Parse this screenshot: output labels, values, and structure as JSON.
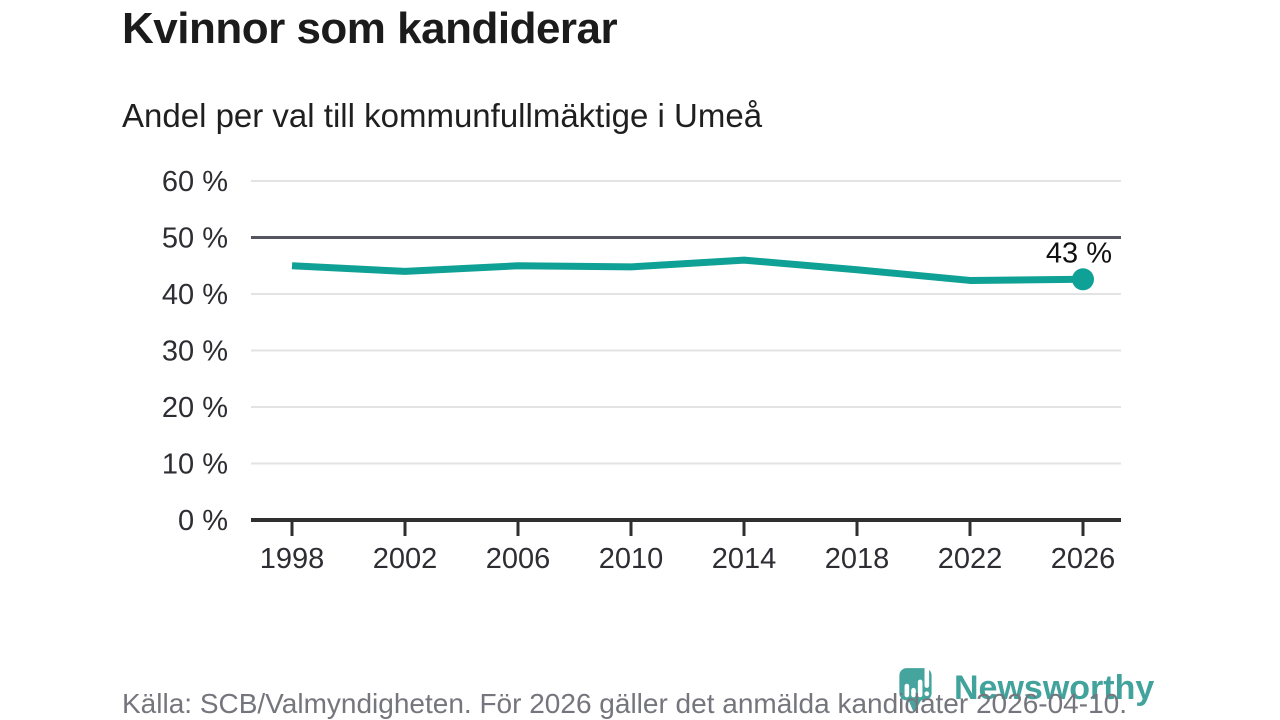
{
  "header": {
    "title": "Kvinnor som kandiderar",
    "subtitle": "Andel per val till kommunfullmäktige i Umeå"
  },
  "chart_data": {
    "type": "line",
    "title": "Kvinnor som kandiderar",
    "subtitle": "Andel per val till kommunfullmäktige i Umeå",
    "x": [
      1998,
      2002,
      2006,
      2010,
      2014,
      2018,
      2022,
      2026
    ],
    "xtick_labels": [
      "1998",
      "2002",
      "2006",
      "2010",
      "2014",
      "2018",
      "2022",
      "2026"
    ],
    "values": [
      45.0,
      44.0,
      45.0,
      44.8,
      46.0,
      44.3,
      42.4,
      42.6
    ],
    "end_label": "43 %",
    "ylim": [
      0,
      60
    ],
    "yticks": [
      0,
      10,
      20,
      30,
      40,
      50,
      60
    ],
    "ytick_labels": [
      "0 %",
      "10 %",
      "20 %",
      "30 %",
      "40 %",
      "50 %",
      "60 %"
    ],
    "reference_line": 50,
    "grid": true,
    "legend": "none",
    "xlabel": "",
    "ylabel": ""
  },
  "footer": {
    "source": "Källa: SCB/Valmyndigheten. För 2026 gäller det anmälda kandidater 2026-04-10."
  },
  "logo": {
    "name": "Newsworthy",
    "icon": "newsworthy-chart-pin-icon",
    "color": "#42a29c"
  },
  "colors": {
    "line": "#0fa195",
    "reference_line": "#55555f",
    "gridline": "#e3e3e3",
    "axis": "#2f2f2f",
    "tick_text": "#2d2d33",
    "title_text": "#1b1b1b",
    "muted_text": "#75757d",
    "end_label_text": "#111111"
  }
}
